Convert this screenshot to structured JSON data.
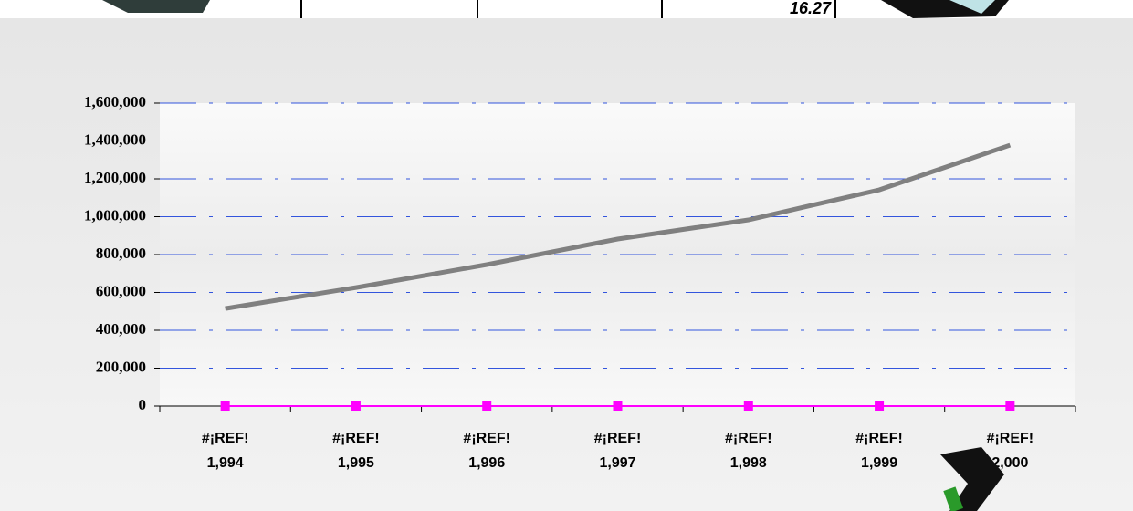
{
  "fragment": {
    "cell_text": "16.27"
  },
  "chart_data": {
    "type": "line",
    "categories": [
      [
        "#¡REF!",
        "1,994"
      ],
      [
        "#¡REF!",
        "1,995"
      ],
      [
        "#¡REF!",
        "1,996"
      ],
      [
        "#¡REF!",
        "1,997"
      ],
      [
        "#¡REF!",
        "1,998"
      ],
      [
        "#¡REF!",
        "1,999"
      ],
      [
        "#¡REF!",
        "2,000"
      ]
    ],
    "series": [
      {
        "color": "#808080",
        "values": [
          515000,
          626000,
          747000,
          882000,
          983000,
          1142000,
          1378000
        ]
      },
      {
        "color": "#ff00ff",
        "marker": "square",
        "values": [
          0,
          0,
          0,
          0,
          0,
          0,
          0
        ]
      }
    ],
    "ylim": [
      0,
      1600000
    ],
    "yticks": [
      0,
      {
        "value": 200000,
        "label": "200,000"
      },
      {
        "value": 400000,
        "label": "400,000"
      },
      {
        "value": 600000,
        "label": "600,000"
      },
      {
        "value": 800000,
        "label": "800,000"
      },
      {
        "value": 1000000,
        "label": "1,000,000"
      },
      {
        "value": 1200000,
        "label": "1,200,000"
      },
      {
        "value": 1400000,
        "label": "1,400,000"
      },
      {
        "value": 1600000,
        "label": "1,600,000"
      }
    ],
    "grid": true,
    "grid_color": "#3355dd"
  }
}
